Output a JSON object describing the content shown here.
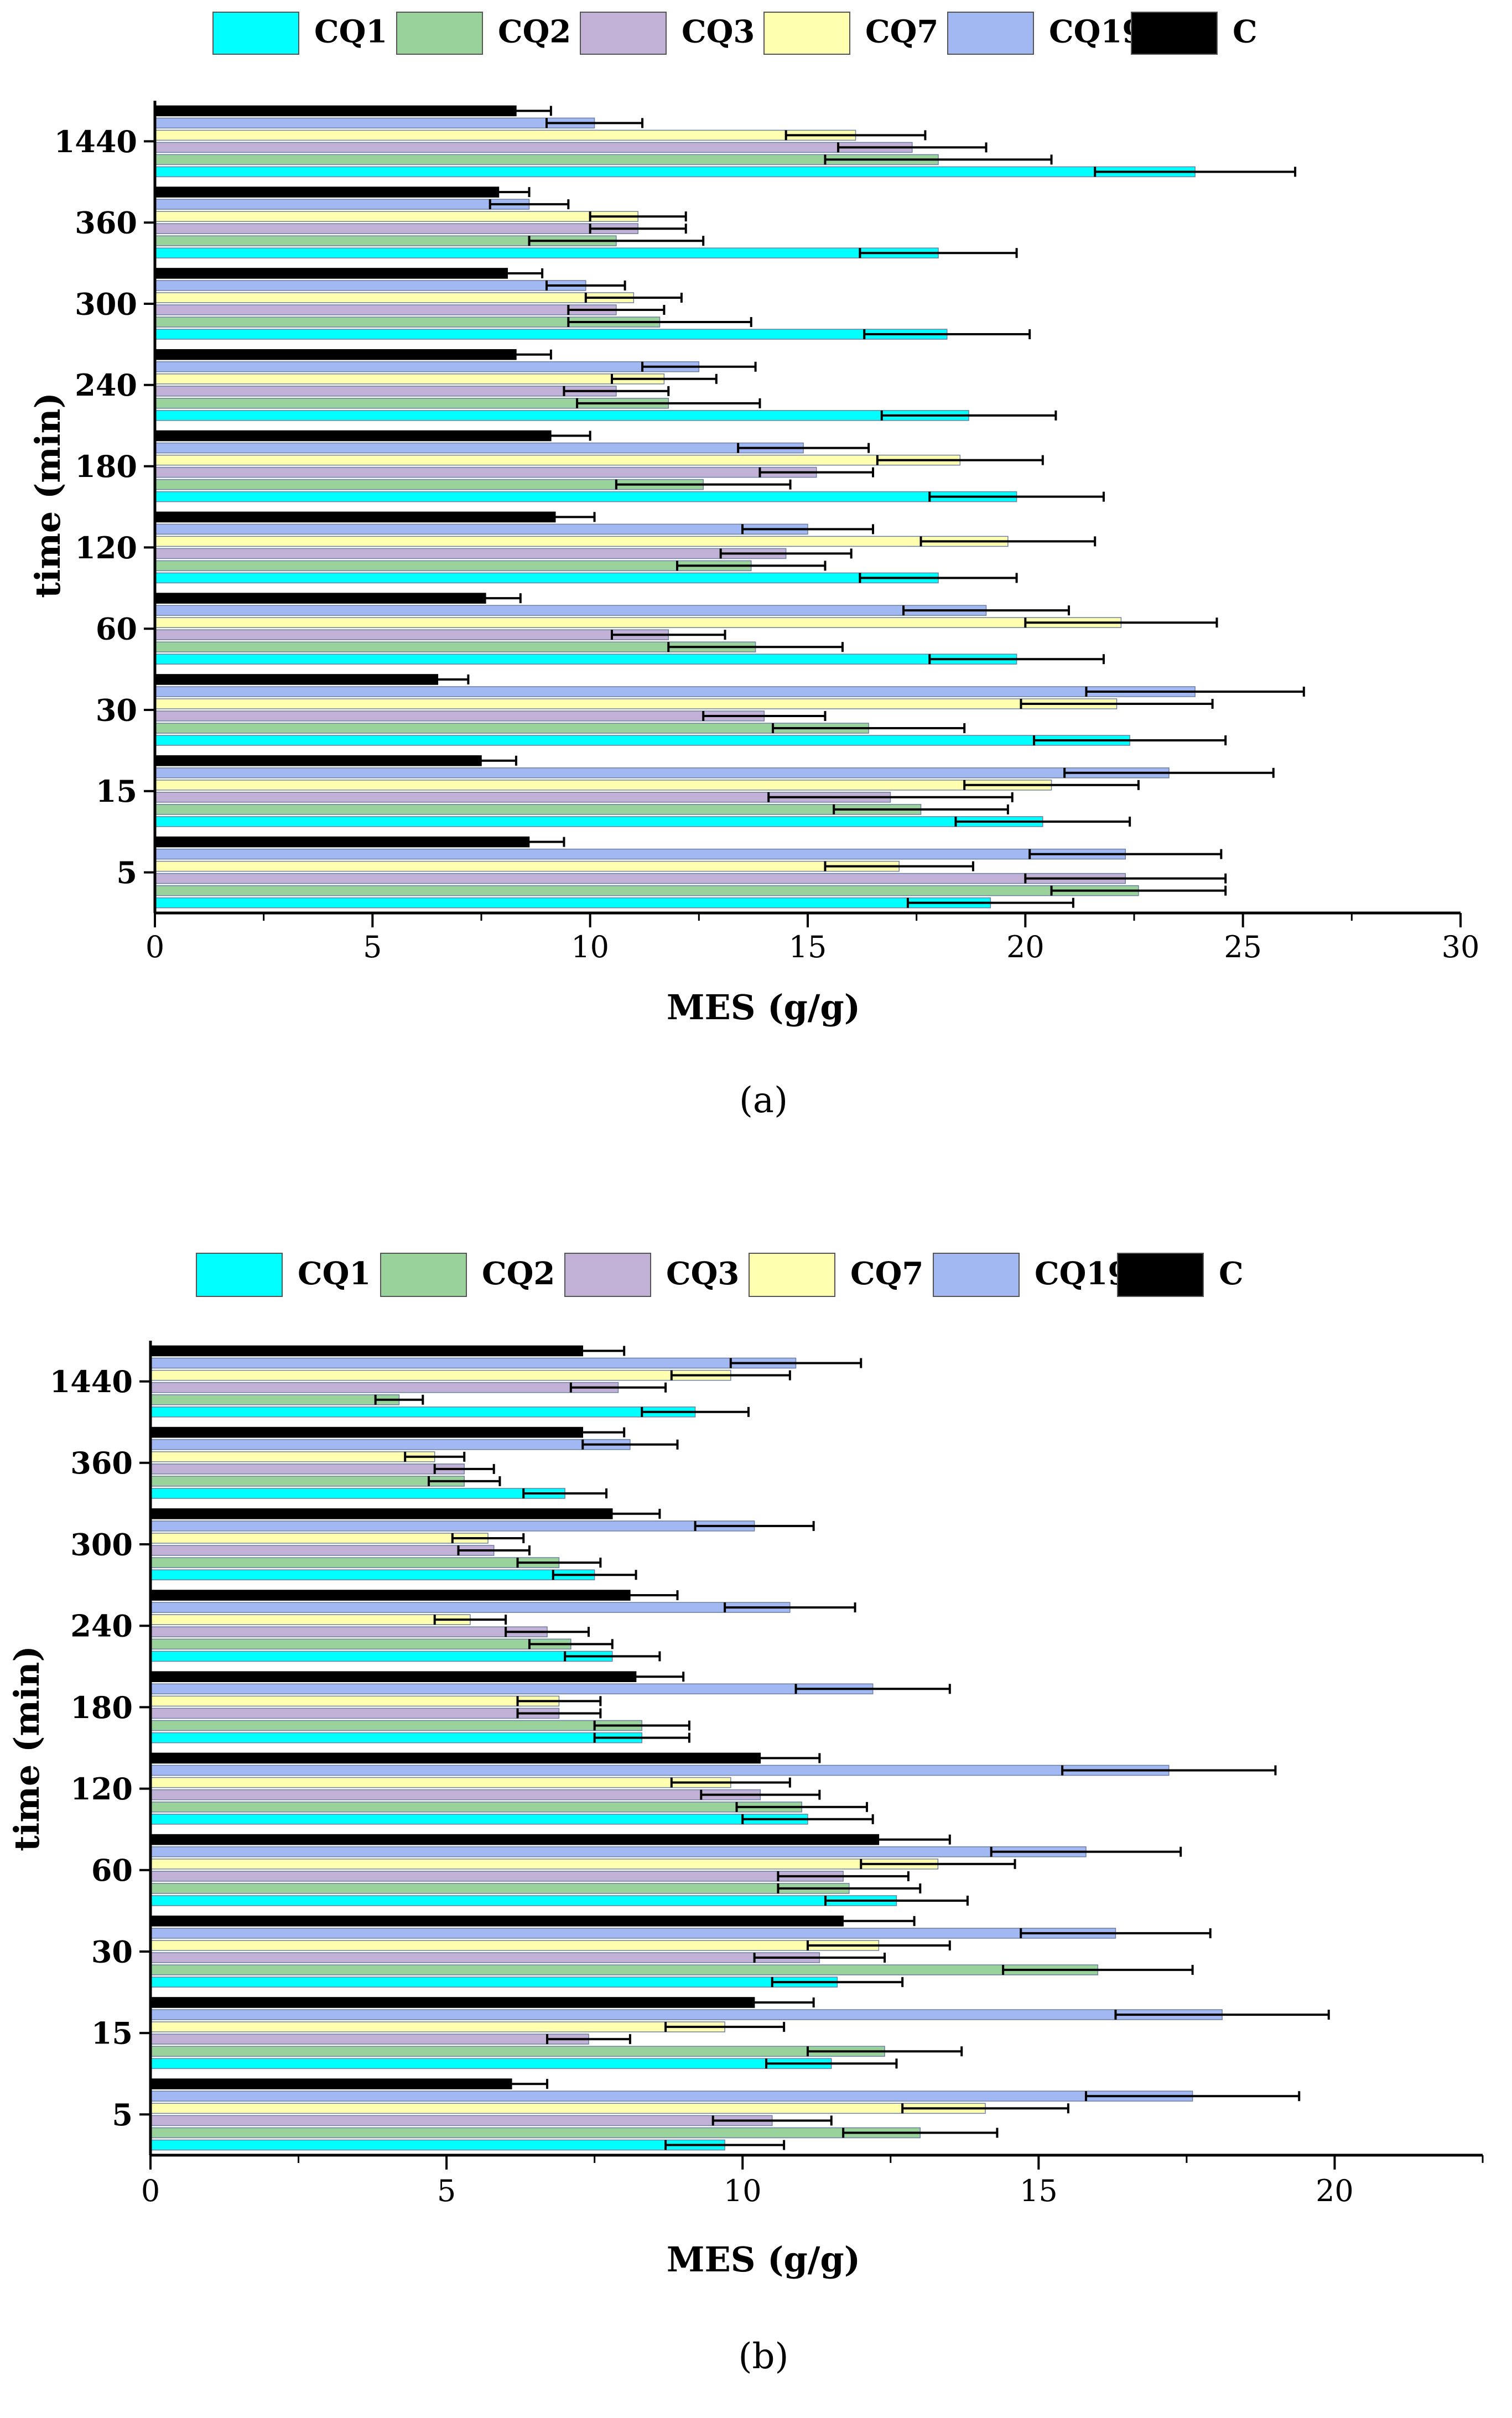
{
  "legend": [
    "CQ1",
    "CQ2",
    "CQ3",
    "CQ7",
    "CQ19",
    "C"
  ],
  "series_colors": [
    "#00ffff",
    "#99d39b",
    "#c2b1d6",
    "#ffffb0",
    "#a1b8f2",
    "#000000"
  ],
  "panels": [
    {
      "caption": "(a)",
      "chart_data": {
        "type": "bar",
        "orientation": "horizontal",
        "categories": [
          "5",
          "15",
          "30",
          "60",
          "120",
          "180",
          "240",
          "300",
          "360",
          "1440"
        ],
        "series": [
          {
            "name": "CQ1",
            "values": [
              19.2,
              20.4,
              22.4,
              19.8,
              18.0,
              19.8,
              18.7,
              18.2,
              18.0,
              23.9
            ],
            "errors": [
              1.9,
              2.0,
              2.2,
              2.0,
              1.8,
              2.0,
              2.0,
              1.9,
              1.8,
              2.3
            ]
          },
          {
            "name": "CQ2",
            "values": [
              22.6,
              17.6,
              16.4,
              13.8,
              13.7,
              12.6,
              11.8,
              11.6,
              10.6,
              18.0
            ],
            "errors": [
              2.0,
              2.0,
              2.2,
              2.0,
              1.7,
              2.0,
              2.1,
              2.1,
              2.0,
              2.6
            ]
          },
          {
            "name": "CQ3",
            "values": [
              22.3,
              16.9,
              14.0,
              11.8,
              14.5,
              15.2,
              10.6,
              10.6,
              11.1,
              17.4
            ],
            "errors": [
              2.3,
              2.8,
              1.4,
              1.3,
              1.5,
              1.3,
              1.2,
              1.1,
              1.1,
              1.7
            ]
          },
          {
            "name": "CQ7",
            "values": [
              17.1,
              20.6,
              22.1,
              22.2,
              19.6,
              18.5,
              11.7,
              11.0,
              11.1,
              16.1
            ],
            "errors": [
              1.7,
              2.0,
              2.2,
              2.2,
              2.0,
              1.9,
              1.2,
              1.1,
              1.1,
              1.6
            ]
          },
          {
            "name": "CQ19",
            "values": [
              22.3,
              23.3,
              23.9,
              19.1,
              15.0,
              14.9,
              12.5,
              9.9,
              8.6,
              10.1
            ],
            "errors": [
              2.2,
              2.4,
              2.5,
              1.9,
              1.5,
              1.5,
              1.3,
              0.9,
              0.9,
              1.1
            ]
          },
          {
            "name": "C",
            "values": [
              8.6,
              7.5,
              6.5,
              7.6,
              9.2,
              9.1,
              8.3,
              8.1,
              7.9,
              8.3
            ],
            "errors": [
              0.8,
              0.8,
              0.7,
              0.8,
              0.9,
              0.9,
              0.8,
              0.8,
              0.7,
              0.8
            ]
          }
        ],
        "xlabel": "MES (g/g)",
        "ylabel": "time (min)",
        "xlim": [
          0,
          30
        ],
        "xticks": [
          "0",
          "5",
          "10",
          "15",
          "20",
          "25",
          "30"
        ],
        "xtick_values": [
          0,
          5,
          10,
          15,
          20,
          25,
          30
        ],
        "legend_position": "top",
        "grid": false
      }
    },
    {
      "caption": "(b)",
      "chart_data": {
        "type": "bar",
        "orientation": "horizontal",
        "categories": [
          "5",
          "15",
          "30",
          "60",
          "120",
          "180",
          "240",
          "300",
          "360",
          "1440"
        ],
        "series": [
          {
            "name": "CQ1",
            "values": [
              9.7,
              11.5,
              11.6,
              12.6,
              11.1,
              8.3,
              7.8,
              7.5,
              7.0,
              9.2
            ],
            "errors": [
              1.0,
              1.1,
              1.1,
              1.2,
              1.1,
              0.8,
              0.8,
              0.7,
              0.7,
              0.9
            ]
          },
          {
            "name": "CQ2",
            "values": [
              13.0,
              12.4,
              16.0,
              11.8,
              11.0,
              8.3,
              7.1,
              6.9,
              5.3,
              4.2
            ],
            "errors": [
              1.3,
              1.3,
              1.6,
              1.2,
              1.1,
              0.8,
              0.7,
              0.7,
              0.6,
              0.4
            ]
          },
          {
            "name": "CQ3",
            "values": [
              10.5,
              7.4,
              11.3,
              11.7,
              10.3,
              6.9,
              6.7,
              5.8,
              5.3,
              7.9
            ],
            "errors": [
              1.0,
              0.7,
              1.1,
              1.1,
              1.0,
              0.7,
              0.7,
              0.6,
              0.5,
              0.8
            ]
          },
          {
            "name": "CQ7",
            "values": [
              14.1,
              9.7,
              12.3,
              13.3,
              9.8,
              6.9,
              5.4,
              5.7,
              4.8,
              9.8
            ],
            "errors": [
              1.4,
              1.0,
              1.2,
              1.3,
              1.0,
              0.7,
              0.6,
              0.6,
              0.5,
              1.0
            ]
          },
          {
            "name": "CQ19",
            "values": [
              17.6,
              18.1,
              16.3,
              15.8,
              17.2,
              12.2,
              10.8,
              10.2,
              8.1,
              10.9
            ],
            "errors": [
              1.8,
              1.8,
              1.6,
              1.6,
              1.8,
              1.3,
              1.1,
              1.0,
              0.8,
              1.1
            ]
          },
          {
            "name": "C",
            "values": [
              6.1,
              10.2,
              11.7,
              12.3,
              10.3,
              8.2,
              8.1,
              7.8,
              7.3,
              7.3
            ],
            "errors": [
              0.6,
              1.0,
              1.2,
              1.2,
              1.0,
              0.8,
              0.8,
              0.8,
              0.7,
              0.7
            ]
          }
        ],
        "xlabel": "MES (g/g)",
        "ylabel": "time (min)",
        "xlim": [
          0,
          22.5
        ],
        "xticks": [
          "0",
          "5",
          "10",
          "15",
          "20"
        ],
        "xtick_values": [
          0,
          5,
          10,
          15,
          20
        ],
        "legend_position": "top",
        "grid": false
      }
    }
  ]
}
